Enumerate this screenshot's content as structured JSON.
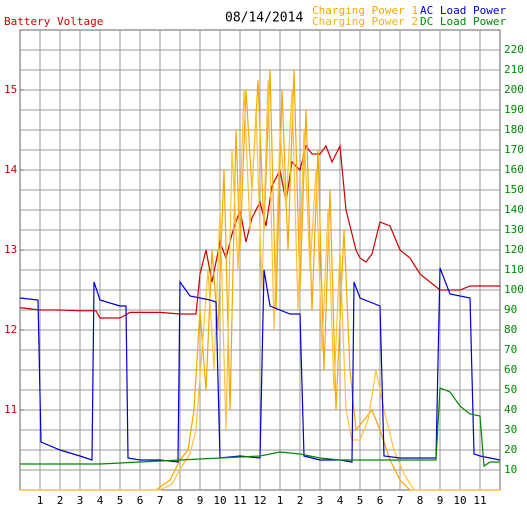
{
  "chart_data": {
    "type": "line",
    "title": "08/14/2014",
    "xlim": [
      0,
      24
    ],
    "xticks": [
      1,
      2,
      3,
      4,
      5,
      6,
      7,
      8,
      9,
      10,
      11,
      12,
      {
        "value": 13,
        "label": "1"
      },
      {
        "value": 14,
        "label": "2"
      },
      {
        "value": 15,
        "label": "3"
      },
      {
        "value": 16,
        "label": "4"
      },
      {
        "value": 17,
        "label": "5"
      },
      {
        "value": 18,
        "label": "6"
      },
      {
        "value": 19,
        "label": "7"
      },
      {
        "value": 20,
        "label": "8"
      },
      {
        "value": 21,
        "label": "9"
      },
      {
        "value": 22,
        "label": "10"
      },
      {
        "value": 23,
        "label": "11"
      }
    ],
    "ylim": [
      10,
      15.75
    ],
    "yticks": [
      11,
      12,
      13,
      14,
      15
    ],
    "y2lim": [
      0,
      230
    ],
    "y2ticks": [
      10,
      20,
      30,
      40,
      50,
      60,
      70,
      80,
      90,
      100,
      110,
      120,
      130,
      140,
      150,
      160,
      170,
      180,
      190,
      200,
      210,
      220
    ],
    "grid": true,
    "series": [
      {
        "name": "Battery Voltage",
        "color": "#cc0000",
        "axis": "y",
        "x": [
          0,
          1,
          2,
          3,
          3.8,
          4,
          5,
          5.5,
          6,
          7,
          8,
          8.8,
          9,
          9.3,
          9.6,
          10,
          10.3,
          10.6,
          11,
          11.3,
          11.6,
          12,
          12.3,
          12.6,
          13,
          13.3,
          13.6,
          14,
          14.3,
          14.6,
          15,
          15.3,
          15.6,
          16,
          16.3,
          16.5,
          16.8,
          17,
          17.3,
          17.6,
          18,
          18.5,
          19,
          19.5,
          20,
          20.5,
          21,
          22,
          22.5,
          23,
          24
        ],
        "values": [
          12.28,
          12.25,
          12.25,
          12.24,
          12.24,
          12.15,
          12.15,
          12.22,
          12.22,
          12.22,
          12.2,
          12.2,
          12.7,
          13.0,
          12.6,
          13.1,
          12.9,
          13.2,
          13.5,
          13.1,
          13.4,
          13.6,
          13.3,
          13.8,
          14.0,
          13.6,
          14.1,
          14.0,
          14.3,
          14.2,
          14.2,
          14.3,
          14.1,
          14.3,
          13.5,
          13.3,
          13.0,
          12.9,
          12.85,
          12.95,
          13.35,
          13.3,
          13.0,
          12.9,
          12.7,
          12.6,
          12.5,
          12.5,
          12.55,
          12.55,
          12.55
        ]
      },
      {
        "name": "Charging Power 1",
        "color": "#f5a800",
        "axis": "y2",
        "x": [
          0,
          6.8,
          7.5,
          8,
          8.4,
          8.7,
          9,
          9.3,
          9.6,
          9.9,
          10.2,
          10.5,
          10.8,
          11,
          11.3,
          11.6,
          11.9,
          12.2,
          12.5,
          12.8,
          13.1,
          13.4,
          13.7,
          14,
          14.3,
          14.6,
          14.9,
          15.2,
          15.5,
          15.8,
          16.2,
          16.5,
          16.8,
          17.2,
          17.6,
          18,
          18.5,
          19,
          19.5,
          24
        ],
        "values": [
          0,
          0,
          5,
          15,
          20,
          40,
          90,
          50,
          120,
          80,
          160,
          40,
          180,
          120,
          200,
          150,
          205,
          130,
          210,
          90,
          200,
          120,
          210,
          100,
          190,
          90,
          170,
          60,
          150,
          40,
          130,
          60,
          30,
          35,
          40,
          30,
          15,
          5,
          0,
          0
        ]
      },
      {
        "name": "Charging Power 2",
        "color": "#ffc23a",
        "axis": "y2",
        "x": [
          0,
          7,
          7.6,
          8.1,
          8.5,
          8.8,
          9.1,
          9.4,
          9.7,
          10,
          10.3,
          10.6,
          10.9,
          11.2,
          11.5,
          11.8,
          12.1,
          12.4,
          12.7,
          13,
          13.3,
          13.6,
          13.9,
          14.2,
          14.5,
          14.8,
          15.1,
          15.4,
          15.7,
          16,
          16.3,
          16.6,
          17,
          17.4,
          17.8,
          18.2,
          18.7,
          19.2,
          19.7,
          24
        ],
        "values": [
          0,
          0,
          3,
          12,
          18,
          30,
          70,
          110,
          60,
          140,
          30,
          170,
          110,
          200,
          130,
          190,
          100,
          205,
          80,
          180,
          140,
          200,
          90,
          180,
          110,
          160,
          70,
          140,
          50,
          120,
          40,
          25,
          25,
          35,
          60,
          40,
          20,
          8,
          0,
          0
        ]
      },
      {
        "name": "AC Load Power",
        "color": "#0000cc",
        "axis": "y2",
        "x": [
          0,
          0.9,
          1.05,
          2,
          3,
          3.6,
          3.7,
          4,
          5,
          5.3,
          5.4,
          6,
          7,
          7.9,
          8,
          8.5,
          9.5,
          9.8,
          10,
          11,
          12,
          12.2,
          12.5,
          13.5,
          14,
          14.2,
          15,
          16,
          16.6,
          16.7,
          17,
          18,
          18.2,
          19,
          20,
          20.8,
          21,
          21.5,
          22.5,
          22.7,
          23,
          24
        ],
        "values": [
          96,
          95,
          24,
          20,
          17,
          15,
          104,
          95,
          92,
          92,
          16,
          15,
          15,
          14,
          104,
          97,
          95,
          94,
          16,
          17,
          16,
          110,
          92,
          88,
          88,
          17,
          15,
          15,
          14,
          104,
          96,
          92,
          17,
          16,
          16,
          16,
          111,
          98,
          96,
          18,
          17,
          15
        ]
      },
      {
        "name": "DC Load Power",
        "color": "#008800",
        "axis": "y2",
        "x": [
          0,
          2,
          4,
          6,
          8,
          10,
          12,
          13,
          14,
          15,
          16,
          18,
          20,
          20.8,
          21,
          21.5,
          22,
          22.5,
          23,
          23.2,
          23.5,
          24
        ],
        "values": [
          13,
          13,
          13,
          14,
          15,
          16,
          17,
          19,
          18,
          16,
          15,
          15,
          15,
          15,
          51,
          49,
          42,
          38,
          37,
          12,
          14,
          14
        ]
      }
    ]
  }
}
